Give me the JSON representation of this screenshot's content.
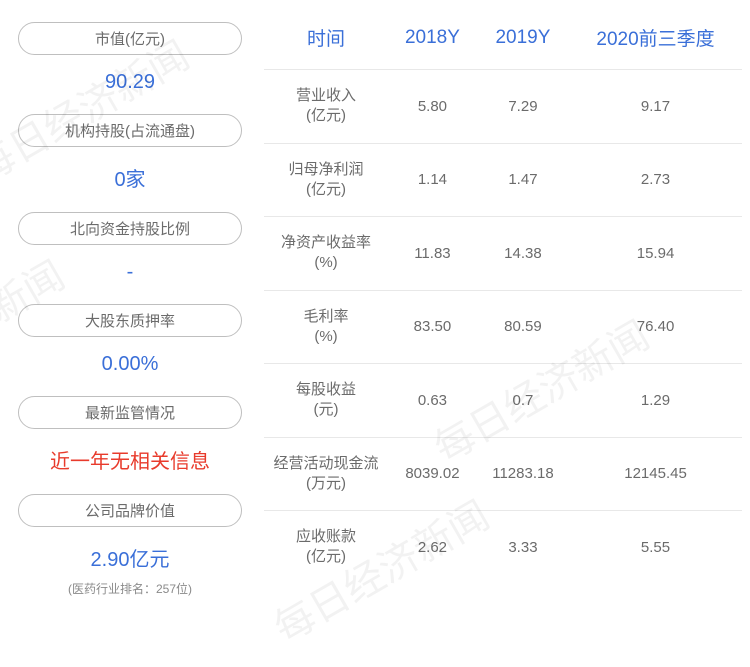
{
  "watermarks": [
    "每日经济新闻",
    "经济新闻",
    "每日经济新闻",
    "每日经济新闻"
  ],
  "left": {
    "items": [
      {
        "label": "市值(亿元)",
        "value": "90.29",
        "type": "normal"
      },
      {
        "label": "机构持股(占流通盘)",
        "value": "0家",
        "type": "normal"
      },
      {
        "label": "北向资金持股比例",
        "value": "-",
        "type": "dash"
      },
      {
        "label": "大股东质押率",
        "value": "0.00%",
        "type": "normal"
      },
      {
        "label": "最新监管情况",
        "value": "近一年无相关信息",
        "type": "red"
      },
      {
        "label": "公司品牌价值",
        "value": "2.90亿元",
        "type": "normal",
        "note": "(医药行业排名：257位)"
      }
    ]
  },
  "table": {
    "headers": [
      "时间",
      "2018Y",
      "2019Y",
      "2020前三季度"
    ],
    "rows": [
      {
        "name": "营业收入\n(亿元)",
        "cells": [
          "5.80",
          "7.29",
          "9.17"
        ]
      },
      {
        "name": "归母净利润\n(亿元)",
        "cells": [
          "1.14",
          "1.47",
          "2.73"
        ]
      },
      {
        "name": "净资产收益率\n(%)",
        "cells": [
          "11.83",
          "14.38",
          "15.94"
        ]
      },
      {
        "name": "毛利率\n(%)",
        "cells": [
          "83.50",
          "80.59",
          "76.40"
        ]
      },
      {
        "name": "每股收益\n(元)",
        "cells": [
          "0.63",
          "0.7",
          "1.29"
        ]
      },
      {
        "name": "经营活动现金流\n(万元)",
        "cells": [
          "8039.02",
          "11283.18",
          "12145.45"
        ]
      },
      {
        "name": "应收账款\n(亿元)",
        "cells": [
          "2.62",
          "3.33",
          "5.55"
        ]
      }
    ]
  }
}
